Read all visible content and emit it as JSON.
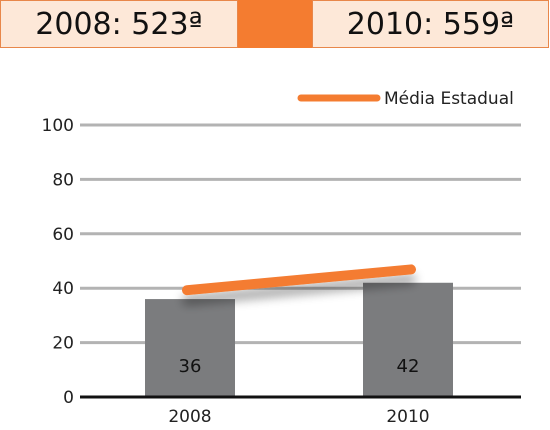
{
  "rankings": {
    "left": "2008: 523ª",
    "right": "2010: 559ª"
  },
  "colors": {
    "bar": "#7b7c7e",
    "line": "#f47c30",
    "grid": "#b3b3b3",
    "accent": "#f47c30",
    "box_bg": "#fde8d8"
  },
  "chart_data": {
    "type": "bar",
    "categories": [
      "2008",
      "2010"
    ],
    "values": [
      36,
      42
    ],
    "series": [
      {
        "name": "",
        "values": [
          36,
          42
        ]
      },
      {
        "name": "Média Estadual",
        "type": "line",
        "values": [
          40,
          48
        ]
      }
    ],
    "ylim": [
      0,
      100
    ],
    "yticks": [
      0,
      20,
      40,
      60,
      80,
      100
    ],
    "grid": true,
    "legend": "top-right",
    "data_labels": [
      "36",
      "42"
    ]
  }
}
